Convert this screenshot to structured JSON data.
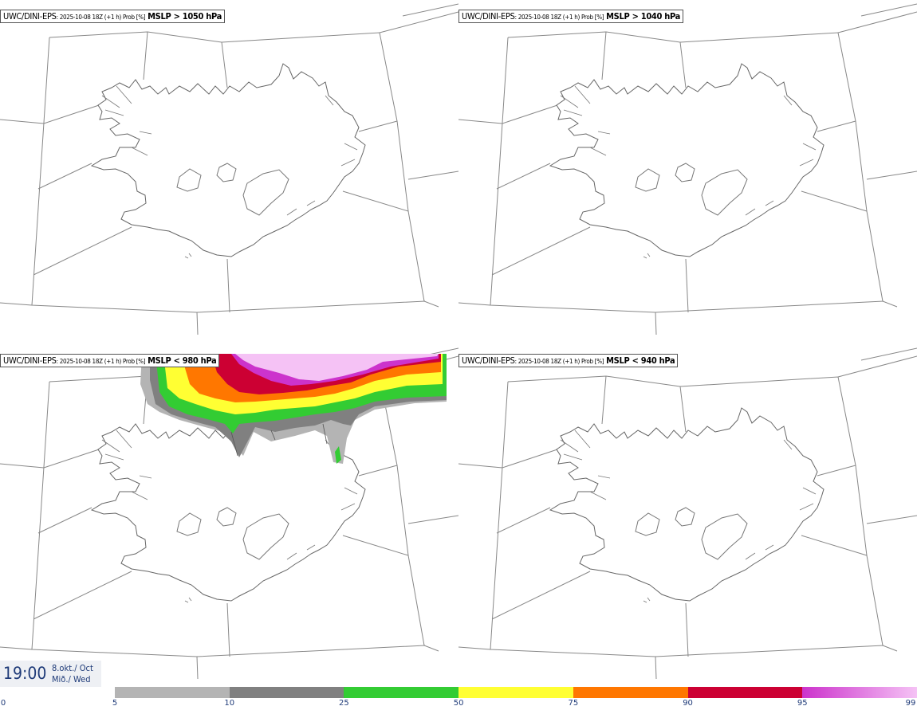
{
  "panels": [
    {
      "source": "UWC/DINI-EPS",
      "meta": ": 2025-10-08 18Z (+1 h) Prob [%]",
      "threshold": "MSLP > 1050 hPa"
    },
    {
      "source": "UWC/DINI-EPS",
      "meta": ": 2025-10-08 18Z (+1 h) Prob [%]",
      "threshold": "MSLP > 1040 hPa"
    },
    {
      "source": "UWC/DINI-EPS",
      "meta": ": 2025-10-08 18Z (+1 h) Prob [%]",
      "threshold": "MSLP < 980 hPa"
    },
    {
      "source": "UWC/DINI-EPS",
      "meta": ": 2025-10-08 18Z (+1 h) Prob [%]",
      "threshold": "MSLP < 940 hPa"
    }
  ],
  "time": {
    "hour": "19:00",
    "date": "8.okt./ Oct",
    "weekday": "Mið./ Wed"
  },
  "legend": {
    "ticks": [
      "0",
      "5",
      "10",
      "25",
      "50",
      "75",
      "90",
      "95",
      "99"
    ],
    "bins": [
      {
        "from": 5,
        "to": 10,
        "color": "#b4b4b4"
      },
      {
        "from": 10,
        "to": 25,
        "color": "#808080"
      },
      {
        "from": 25,
        "to": 50,
        "color": "#33cc33"
      },
      {
        "from": 50,
        "to": 75,
        "color": "#ffff33"
      },
      {
        "from": 75,
        "to": 90,
        "color": "#ff7700"
      },
      {
        "from": 90,
        "to": 95,
        "color": "#cc0033"
      },
      {
        "from": 95,
        "to": 99,
        "color": "#cc33cc",
        "color_end": "#f5c2f5"
      }
    ]
  }
}
